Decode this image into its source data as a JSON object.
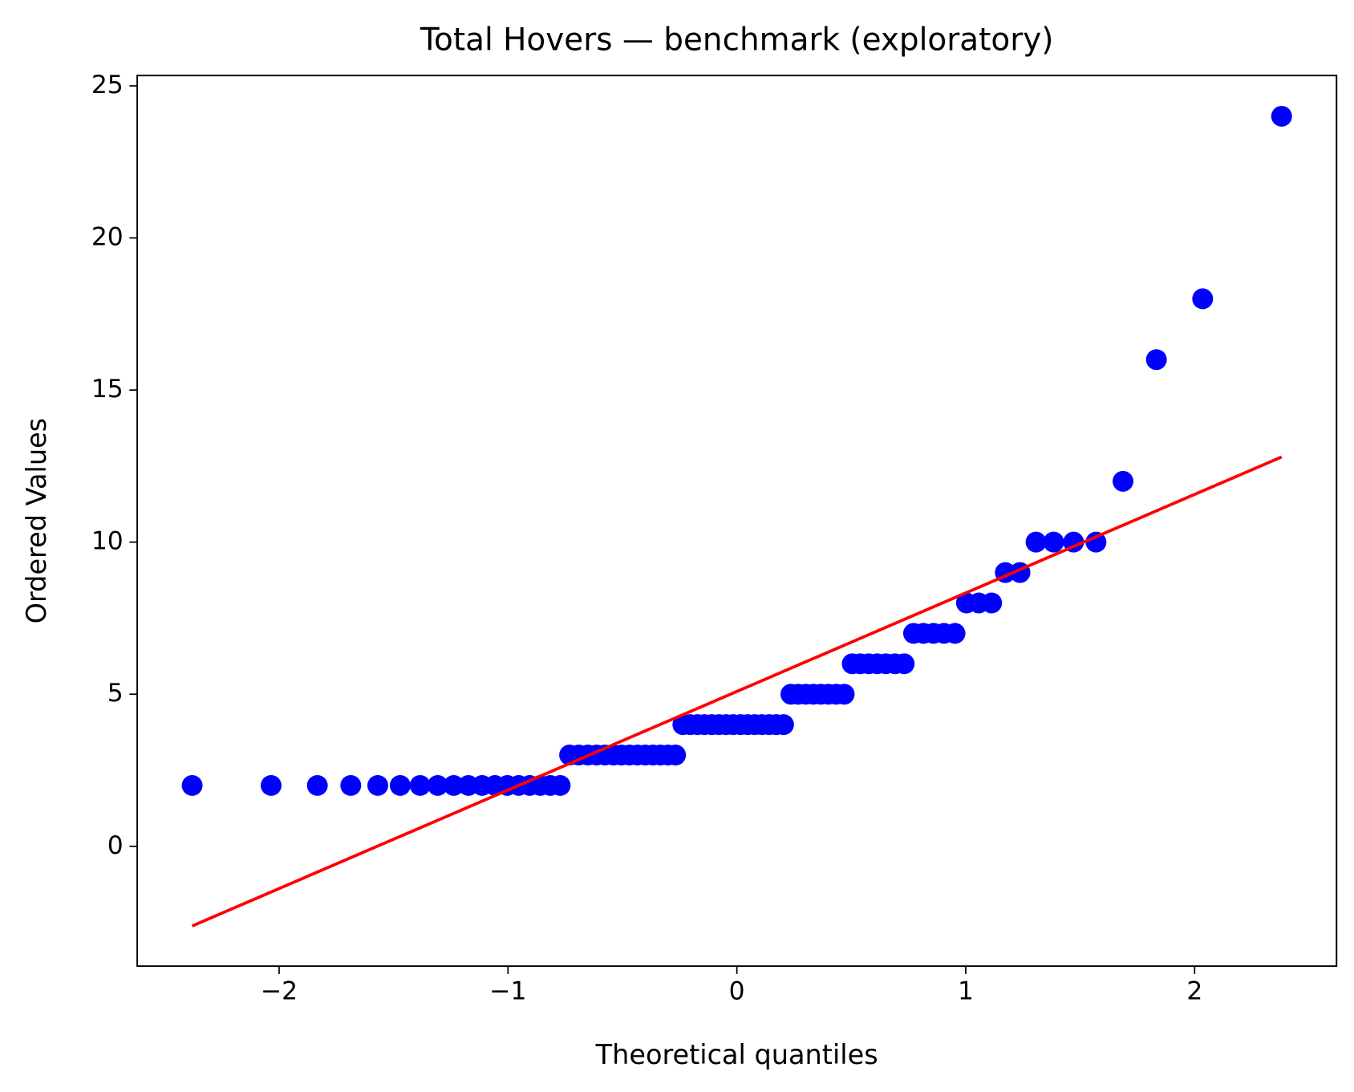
{
  "chart_data": {
    "type": "scatter",
    "title": "Total Hovers — benchmark (exploratory)",
    "x_label": "Theoretical quantiles",
    "y_label": "Ordered Values",
    "xlim": [
      -2.62,
      2.62
    ],
    "ylim": [
      -3.94,
      25.34
    ],
    "xticks": [
      {
        "value": -2,
        "label": "−2"
      },
      {
        "value": -1,
        "label": "−1"
      },
      0,
      1,
      2
    ],
    "yticks": [
      0,
      5,
      10,
      15,
      20,
      25
    ],
    "series": [
      {
        "type": "scatter",
        "color": "#0000ff",
        "x": [
          -2.38,
          -2.035,
          -1.833,
          -1.687,
          -1.569,
          -1.471,
          -1.384,
          -1.307,
          -1.237,
          -1.173,
          -1.113,
          -1.057,
          -1.003,
          -0.953,
          -0.905,
          -0.859,
          -0.815,
          -0.772,
          -0.731,
          -0.691,
          -0.651,
          -0.613,
          -0.576,
          -0.539,
          -0.504,
          -0.469,
          -0.434,
          -0.4,
          -0.367,
          -0.334,
          -0.301,
          -0.268,
          -0.236,
          -0.204,
          -0.172,
          -0.141,
          -0.109,
          -0.078,
          -0.047,
          -0.016,
          0.016,
          0.047,
          0.078,
          0.109,
          0.141,
          0.172,
          0.204,
          0.236,
          0.268,
          0.301,
          0.334,
          0.367,
          0.4,
          0.434,
          0.469,
          0.504,
          0.539,
          0.576,
          0.613,
          0.651,
          0.691,
          0.731,
          0.772,
          0.815,
          0.859,
          0.905,
          0.953,
          1.003,
          1.057,
          1.113,
          1.173,
          1.237,
          1.307,
          1.384,
          1.471,
          1.569,
          1.687,
          1.833,
          2.035,
          2.38
        ],
        "values": [
          2,
          2,
          2,
          2,
          2,
          2,
          2,
          2,
          2,
          2,
          2,
          2,
          2,
          2,
          2,
          2,
          2,
          2,
          3,
          3,
          3,
          3,
          3,
          3,
          3,
          3,
          3,
          3,
          3,
          3,
          3,
          3,
          4,
          4,
          4,
          4,
          4,
          4,
          4,
          4,
          4,
          4,
          4,
          4,
          4,
          4,
          4,
          5,
          5,
          5,
          5,
          5,
          5,
          5,
          5,
          6,
          6,
          6,
          6,
          6,
          6,
          6,
          7,
          7,
          7,
          7,
          7,
          8,
          8,
          8,
          9,
          9,
          10,
          10,
          10,
          10,
          12,
          16,
          18,
          24
        ]
      },
      {
        "type": "line",
        "color": "#ff0000",
        "x": [
          -2.38,
          2.38
        ],
        "values": [
          -2.62,
          12.8
        ]
      }
    ]
  }
}
